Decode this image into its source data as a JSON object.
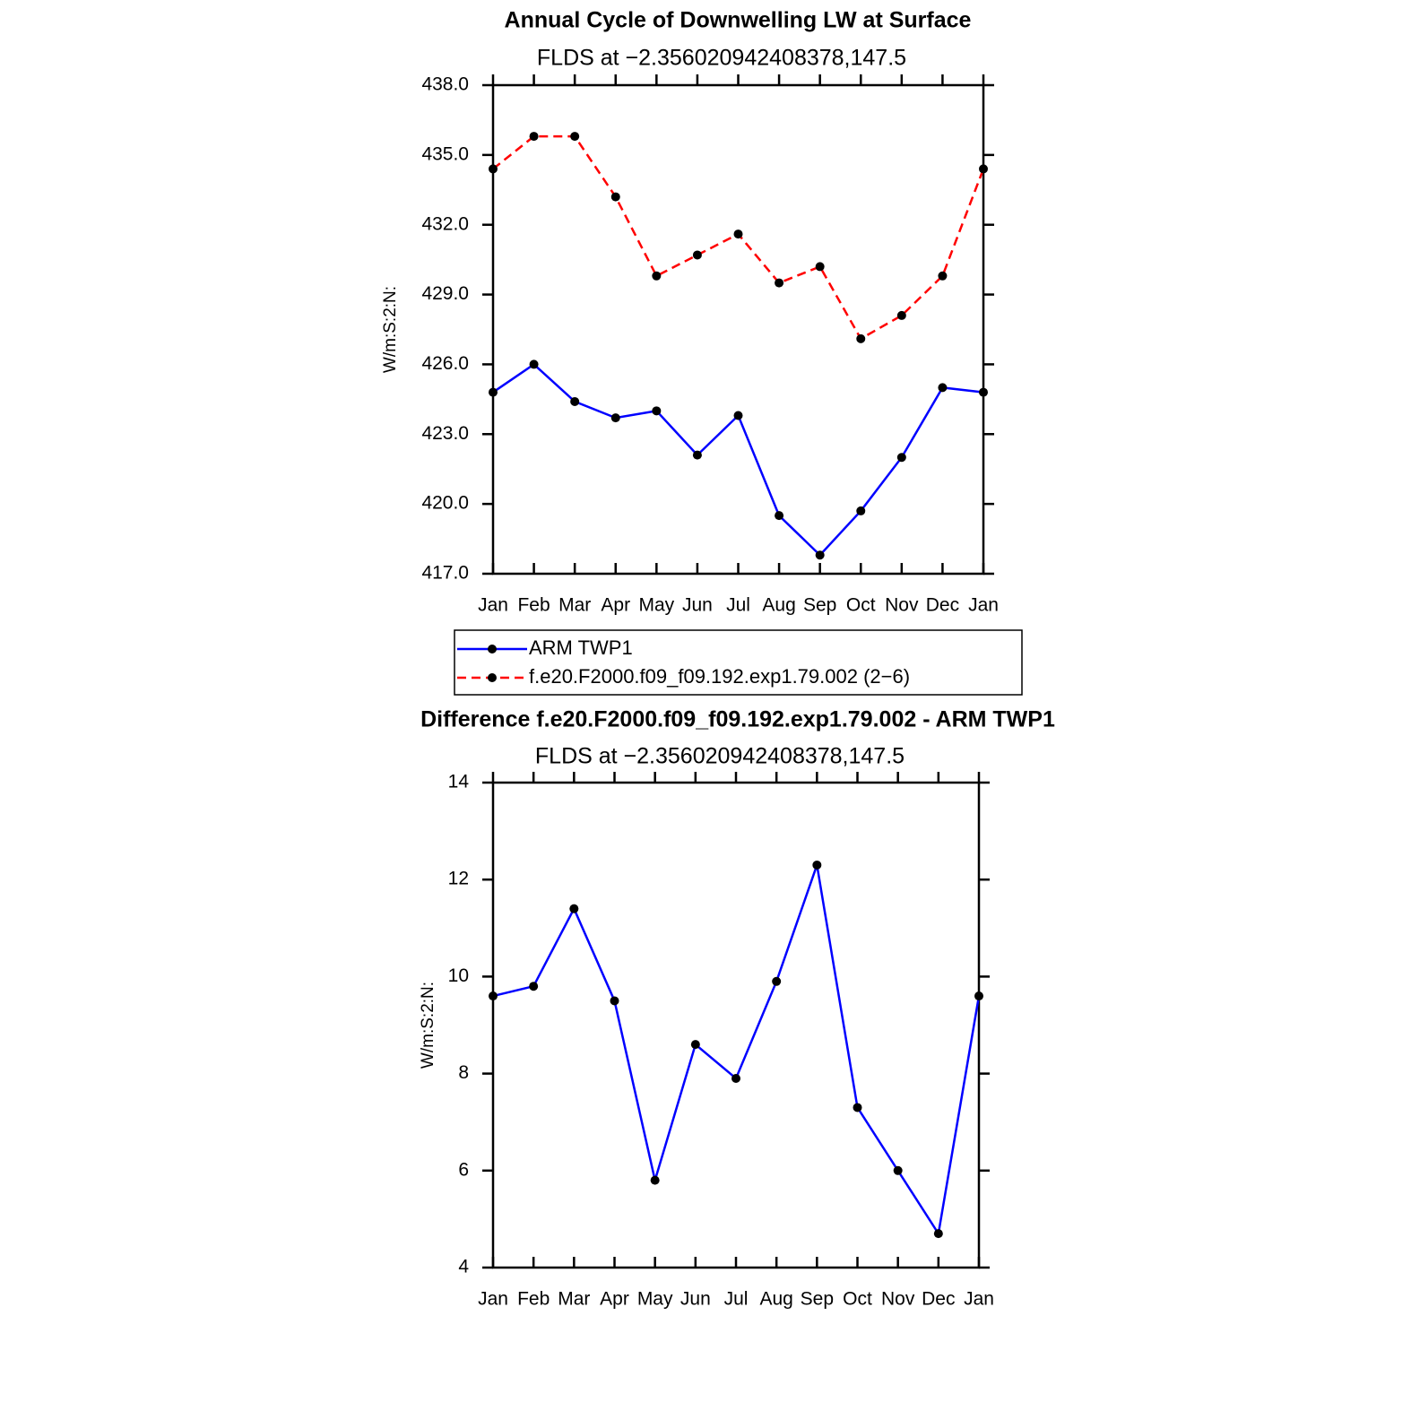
{
  "chart_data": [
    {
      "type": "line",
      "title": "Annual Cycle of Downwelling LW at Surface",
      "subtitle": "FLDS at −2.356020942408378,147.5",
      "y_label": "W/m:S:2:N:",
      "categories": [
        "Jan",
        "Feb",
        "Mar",
        "Apr",
        "May",
        "Jun",
        "Jul",
        "Aug",
        "Sep",
        "Oct",
        "Nov",
        "Dec",
        "Jan"
      ],
      "series": [
        {
          "name": "ARM TWP1",
          "color": "#0000ff",
          "dashed": false,
          "values": [
            424.8,
            426.0,
            424.4,
            423.7,
            424.0,
            422.1,
            423.8,
            419.5,
            417.8,
            419.7,
            422.0,
            425.0,
            424.8
          ]
        },
        {
          "name": "f.e20.F2000.f09_f09.192.exp1.79.002 (2−6)",
          "color": "#ff0000",
          "dashed": true,
          "values": [
            434.4,
            435.8,
            435.8,
            433.2,
            429.8,
            430.7,
            431.6,
            429.5,
            430.2,
            427.1,
            428.1,
            429.8,
            434.4
          ]
        }
      ],
      "ylim": [
        417,
        438
      ],
      "yticks": [
        {
          "value": 417,
          "label": "417.0"
        },
        {
          "value": 420,
          "label": "420.0"
        },
        {
          "value": 423,
          "label": "423.0"
        },
        {
          "value": 426,
          "label": "426.0"
        },
        {
          "value": 429,
          "label": "429.0"
        },
        {
          "value": 432,
          "label": "432.0"
        },
        {
          "value": 435,
          "label": "435.0"
        },
        {
          "value": 438,
          "label": "438.0"
        }
      ],
      "marker_color": "#000000"
    },
    {
      "type": "line",
      "title": "Difference f.e20.F2000.f09_f09.192.exp1.79.002 - ARM TWP1",
      "subtitle": "FLDS at −2.356020942408378,147.5",
      "y_label": "W/m:S:2:N:",
      "categories": [
        "Jan",
        "Feb",
        "Mar",
        "Apr",
        "May",
        "Jun",
        "Jul",
        "Aug",
        "Sep",
        "Oct",
        "Nov",
        "Dec",
        "Jan"
      ],
      "values": [
        9.6,
        9.8,
        11.4,
        9.5,
        5.8,
        8.6,
        7.9,
        9.9,
        12.3,
        7.3,
        6.0,
        4.7,
        9.6
      ],
      "color": "#0000ff",
      "ylim": [
        4,
        14
      ],
      "yticks": [
        4,
        6,
        8,
        10,
        12,
        14
      ],
      "marker_color": "#000000"
    }
  ]
}
